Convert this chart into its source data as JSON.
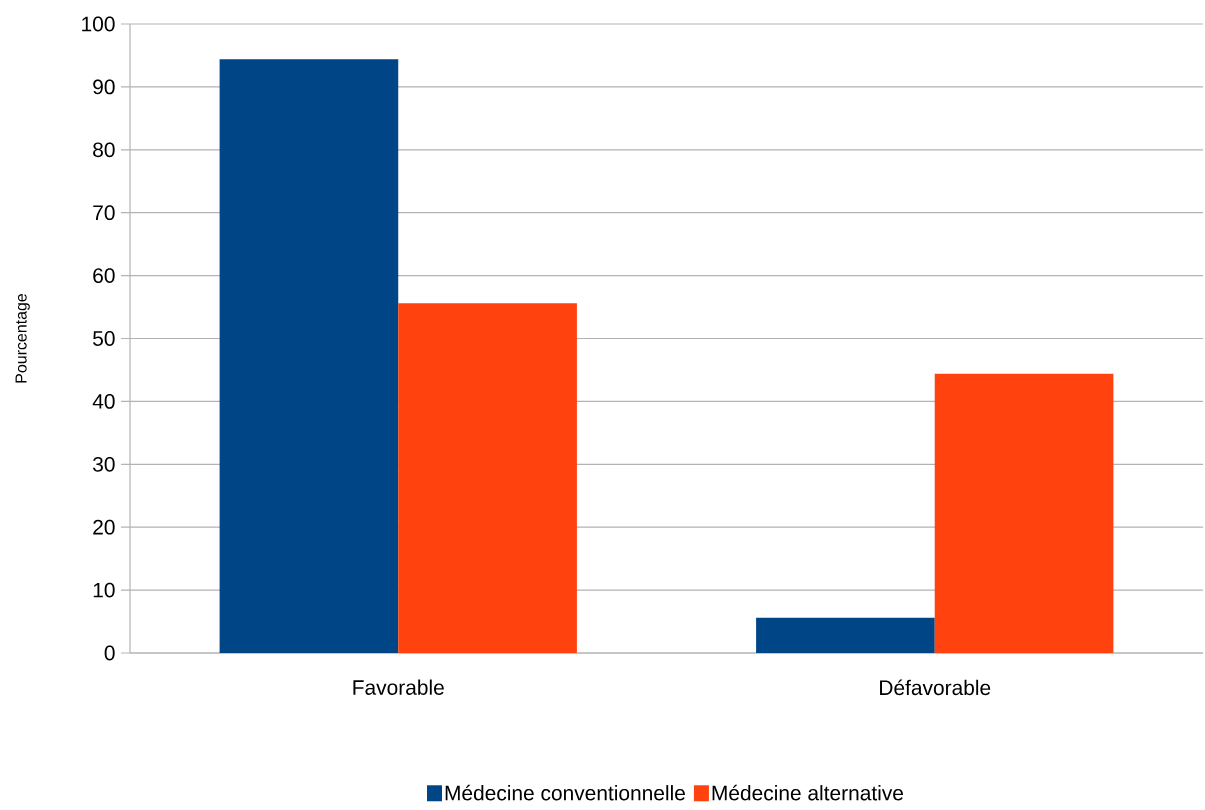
{
  "chart_data": {
    "type": "bar",
    "ylabel": "Pourcentage",
    "categories": [
      "Favorable",
      "Défavorable"
    ],
    "series": [
      {
        "name": "Médecine conventionnelle",
        "color": "#004586",
        "values": [
          94.4,
          5.6
        ]
      },
      {
        "name": "Médecine alternative",
        "color": "#ff420e",
        "values": [
          55.6,
          44.4
        ]
      }
    ],
    "ylim": [
      0,
      100
    ],
    "yticks": [
      0,
      10,
      20,
      30,
      40,
      50,
      60,
      70,
      80,
      90,
      100
    ],
    "grid": "y",
    "legend": "bottom"
  }
}
